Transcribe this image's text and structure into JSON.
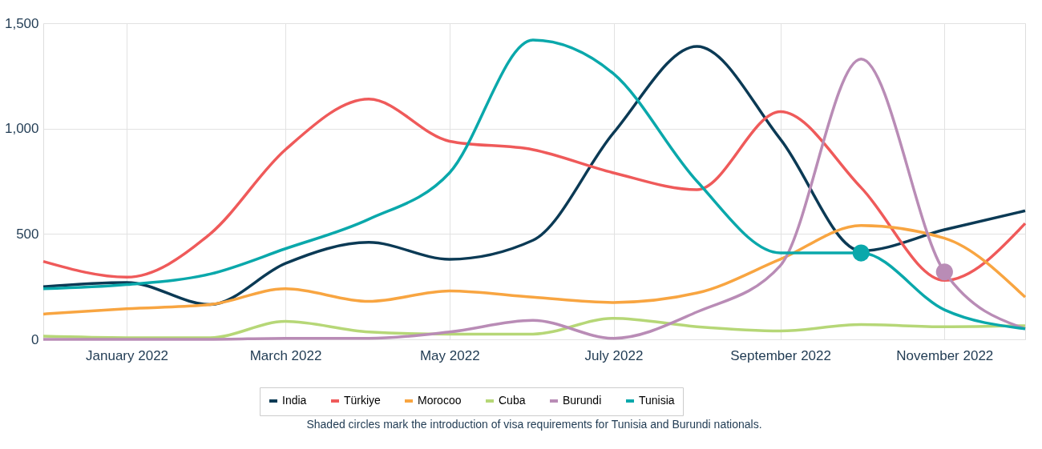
{
  "chart_data": {
    "type": "line",
    "x": [
      "2021-12",
      "2022-01",
      "2022-02",
      "2022-03",
      "2022-04",
      "2022-05",
      "2022-06",
      "2022-07",
      "2022-08",
      "2022-09",
      "2022-10",
      "2022-11",
      "2022-12"
    ],
    "series": [
      {
        "name": "India",
        "color": "#0b3a55",
        "values": [
          250,
          270,
          165,
          360,
          460,
          380,
          470,
          980,
          1390,
          950,
          420,
          520,
          610
        ]
      },
      {
        "name": "Türkiye",
        "color": "#ef5a5a",
        "values": [
          370,
          295,
          500,
          900,
          1140,
          940,
          900,
          790,
          710,
          1080,
          720,
          280,
          550
        ]
      },
      {
        "name": "Morocoo",
        "color": "#f8a541",
        "values": [
          120,
          145,
          165,
          240,
          180,
          230,
          200,
          175,
          220,
          380,
          540,
          480,
          200
        ]
      },
      {
        "name": "Cuba",
        "color": "#b6d777",
        "values": [
          15,
          8,
          8,
          85,
          35,
          25,
          25,
          100,
          60,
          40,
          70,
          60,
          65
        ]
      },
      {
        "name": "Burundi",
        "color": "#b98cb6",
        "values": [
          0,
          0,
          0,
          5,
          5,
          35,
          90,
          5,
          130,
          350,
          1330,
          320,
          50
        ]
      },
      {
        "name": "Tunisia",
        "color": "#0aa8ab",
        "values": [
          240,
          260,
          310,
          430,
          570,
          790,
          1420,
          1260,
          750,
          410,
          410,
          140,
          50
        ]
      },
      {
        "type": "scatter",
        "marker": "circle",
        "color": "#0aa8ab",
        "x": [
          "2022-10"
        ],
        "values": [
          410
        ]
      },
      {
        "type": "scatter",
        "marker": "circle",
        "color": "#b98cb6",
        "x": [
          "2022-11"
        ],
        "values": [
          320
        ]
      }
    ],
    "xlim": [
      "2021-12",
      "2022-12"
    ],
    "xticks": [
      {
        "value": "2022-01",
        "label": "January 2022"
      },
      {
        "value": "2022-03",
        "label": "March 2022"
      },
      {
        "value": "2022-05",
        "label": "May 2022"
      },
      {
        "value": "2022-07",
        "label": "July 2022"
      },
      {
        "value": "2022-09",
        "label": "September 2022"
      },
      {
        "value": "2022-11",
        "label": "November 2022"
      }
    ],
    "ylim": [
      0,
      1500
    ],
    "yticks": [
      {
        "value": 0,
        "label": "0"
      },
      {
        "value": 500,
        "label": "500"
      },
      {
        "value": 1000,
        "label": "1,000"
      },
      {
        "value": 1500,
        "label": "1,500"
      }
    ],
    "grid": true,
    "legend": "bottom",
    "line_style": "solid",
    "annotations": [
      "Shaded circles mark the introduction of visa requirements for Tunisia and Burundi nationals."
    ]
  }
}
